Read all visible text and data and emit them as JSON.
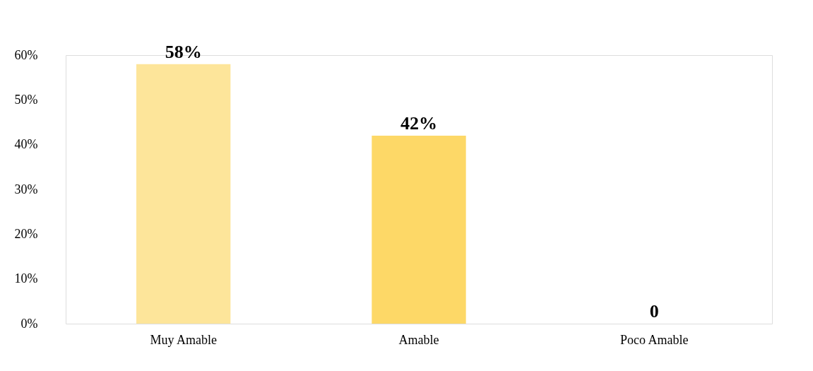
{
  "chart_data": {
    "type": "bar",
    "categories": [
      "Muy Amable",
      "Amable",
      "Poco Amable"
    ],
    "values": [
      58,
      42,
      0
    ],
    "colors": [
      "#fde59a",
      "#fdd867",
      "#b8b8b8"
    ],
    "value_labels": [
      "58%",
      "42%",
      "0"
    ],
    "ylim": [
      0,
      60
    ],
    "yticks": [
      {
        "value": 0,
        "label": "0%"
      },
      {
        "value": 10,
        "label": "10%"
      },
      {
        "value": 20,
        "label": "20%"
      },
      {
        "value": 30,
        "label": "30%"
      },
      {
        "value": 40,
        "label": "40%"
      },
      {
        "value": 50,
        "label": "50%"
      },
      {
        "value": 60,
        "label": "60%"
      }
    ]
  }
}
